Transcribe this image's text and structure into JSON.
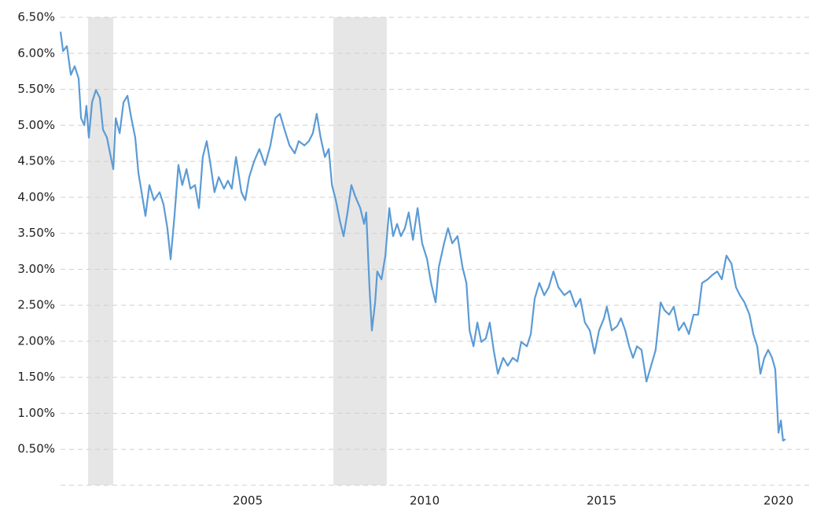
{
  "chart_data": {
    "type": "line",
    "xlim": [
      1999.71,
      2020.22
    ],
    "xticks": [
      2005,
      2010,
      2015,
      2020
    ],
    "ylim": [
      0,
      6.5
    ],
    "yticks": [
      {
        "value": 0.5,
        "label": "0.50%"
      },
      {
        "value": 1,
        "label": "1.00%"
      },
      {
        "value": 1.5,
        "label": "1.50%"
      },
      {
        "value": 2,
        "label": "2.00%"
      },
      {
        "value": 2.5,
        "label": "2.50%"
      },
      {
        "value": 3,
        "label": "3.00%"
      },
      {
        "value": 3.5,
        "label": "3.50%"
      },
      {
        "value": 4,
        "label": "4.00%"
      },
      {
        "value": 4.5,
        "label": "4.50%"
      },
      {
        "value": 5,
        "label": "5.00%"
      },
      {
        "value": 5.5,
        "label": "5.50%"
      },
      {
        "value": 6,
        "label": "6.00%"
      },
      {
        "value": 6.5,
        "label": "6.50%"
      }
    ],
    "grid": true,
    "shaded_ranges": [
      [
        2000.49,
        2001.2
      ],
      [
        2007.42,
        2008.93
      ]
    ],
    "shade_color": "#e6e6e6",
    "x": [
      1999.71,
      1999.78,
      1999.89,
      2000.0,
      2000.11,
      2000.22,
      2000.29,
      2000.38,
      2000.44,
      2000.51,
      2000.6,
      2000.71,
      2000.82,
      2000.91,
      2001.02,
      2001.11,
      2001.2,
      2001.27,
      2001.38,
      2001.49,
      2001.6,
      2001.71,
      2001.82,
      2001.91,
      2002.0,
      2002.11,
      2002.22,
      2002.35,
      2002.51,
      2002.62,
      2002.73,
      2002.82,
      2002.93,
      2003.04,
      2003.15,
      2003.27,
      2003.38,
      2003.51,
      2003.62,
      2003.73,
      2003.84,
      2003.95,
      2004.06,
      2004.18,
      2004.33,
      2004.44,
      2004.55,
      2004.67,
      2004.82,
      2004.93,
      2005.04,
      2005.18,
      2005.33,
      2005.49,
      2005.64,
      2005.78,
      2005.91,
      2006.04,
      2006.18,
      2006.33,
      2006.44,
      2006.6,
      2006.73,
      2006.84,
      2006.95,
      2007.06,
      2007.18,
      2007.29,
      2007.38,
      2007.49,
      2007.6,
      2007.71,
      2007.82,
      2007.93,
      2008.04,
      2008.18,
      2008.29,
      2008.35,
      2008.44,
      2008.51,
      2008.6,
      2008.66,
      2008.78,
      2008.89,
      2009.0,
      2009.11,
      2009.22,
      2009.33,
      2009.44,
      2009.55,
      2009.67,
      2009.8,
      2009.93,
      2010.07,
      2010.18,
      2010.31,
      2010.4,
      2010.55,
      2010.66,
      2010.78,
      2010.93,
      2011.07,
      2011.18,
      2011.27,
      2011.38,
      2011.49,
      2011.6,
      2011.73,
      2011.84,
      2011.95,
      2012.07,
      2012.22,
      2012.35,
      2012.49,
      2012.62,
      2012.73,
      2012.89,
      2013.0,
      2013.11,
      2013.24,
      2013.38,
      2013.51,
      2013.64,
      2013.78,
      2013.95,
      2014.11,
      2014.27,
      2014.4,
      2014.53,
      2014.67,
      2014.8,
      2014.93,
      2015.07,
      2015.15,
      2015.29,
      2015.44,
      2015.55,
      2015.67,
      2015.78,
      2015.89,
      2016.0,
      2016.13,
      2016.27,
      2016.4,
      2016.53,
      2016.67,
      2016.78,
      2016.91,
      2017.04,
      2017.18,
      2017.33,
      2017.47,
      2017.6,
      2017.73,
      2017.84,
      2018.0,
      2018.13,
      2018.27,
      2018.4,
      2018.53,
      2018.67,
      2018.8,
      2018.91,
      2019.04,
      2019.18,
      2019.29,
      2019.4,
      2019.49,
      2019.6,
      2019.71,
      2019.82,
      2019.91,
      2020.0,
      2020.07,
      2020.13,
      2020.2
    ],
    "series": [
      {
        "color": "#5b9bd5",
        "values": [
          6.3,
          6.03,
          6.1,
          5.7,
          5.82,
          5.65,
          5.1,
          5.0,
          5.27,
          4.83,
          5.32,
          5.49,
          5.38,
          4.94,
          4.83,
          4.61,
          4.39,
          5.1,
          4.89,
          5.32,
          5.41,
          5.1,
          4.83,
          4.34,
          4.07,
          3.74,
          4.17,
          3.96,
          4.07,
          3.9,
          3.57,
          3.14,
          3.74,
          4.45,
          4.17,
          4.39,
          4.12,
          4.17,
          3.85,
          4.56,
          4.78,
          4.45,
          4.07,
          4.28,
          4.12,
          4.23,
          4.12,
          4.56,
          4.07,
          3.96,
          4.28,
          4.5,
          4.67,
          4.45,
          4.72,
          5.1,
          5.16,
          4.94,
          4.72,
          4.61,
          4.78,
          4.72,
          4.78,
          4.89,
          5.16,
          4.83,
          4.56,
          4.67,
          4.17,
          3.96,
          3.68,
          3.46,
          3.79,
          4.17,
          4.01,
          3.85,
          3.63,
          3.79,
          2.75,
          2.15,
          2.54,
          2.97,
          2.86,
          3.19,
          3.85,
          3.46,
          3.63,
          3.46,
          3.57,
          3.79,
          3.41,
          3.85,
          3.36,
          3.14,
          2.81,
          2.54,
          3.03,
          3.36,
          3.57,
          3.36,
          3.46,
          3.03,
          2.81,
          2.15,
          1.93,
          2.26,
          1.99,
          2.04,
          2.26,
          1.88,
          1.55,
          1.77,
          1.66,
          1.77,
          1.72,
          1.99,
          1.93,
          2.1,
          2.59,
          2.81,
          2.64,
          2.75,
          2.97,
          2.75,
          2.64,
          2.7,
          2.48,
          2.59,
          2.26,
          2.15,
          1.83,
          2.15,
          2.32,
          2.48,
          2.15,
          2.21,
          2.32,
          2.15,
          1.93,
          1.77,
          1.93,
          1.88,
          1.44,
          1.66,
          1.88,
          2.54,
          2.43,
          2.37,
          2.48,
          2.15,
          2.26,
          2.1,
          2.37,
          2.37,
          2.81,
          2.86,
          2.92,
          2.97,
          2.86,
          3.19,
          3.08,
          2.75,
          2.64,
          2.54,
          2.37,
          2.1,
          1.93,
          1.55,
          1.77,
          1.88,
          1.77,
          1.61,
          0.73,
          0.9,
          0.62,
          0.64
        ]
      }
    ]
  }
}
